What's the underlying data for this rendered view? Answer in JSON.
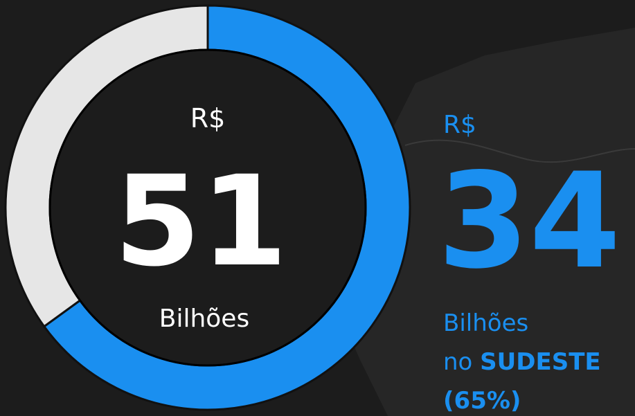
{
  "chart_data": {
    "type": "donut",
    "categories": [
      "SUDESTE",
      null
    ],
    "values": [
      65,
      35
    ],
    "value_labels": [
      "(65%)",
      null
    ],
    "colors": [
      "#1a8ff0",
      "#e6e6e6"
    ],
    "center": {
      "prefix": "R$",
      "value": 51,
      "unit": "Bilhões"
    },
    "callout": {
      "prefix": "R$",
      "value": 34,
      "unit": "Bilhões",
      "region_prefix": "no"
    }
  }
}
